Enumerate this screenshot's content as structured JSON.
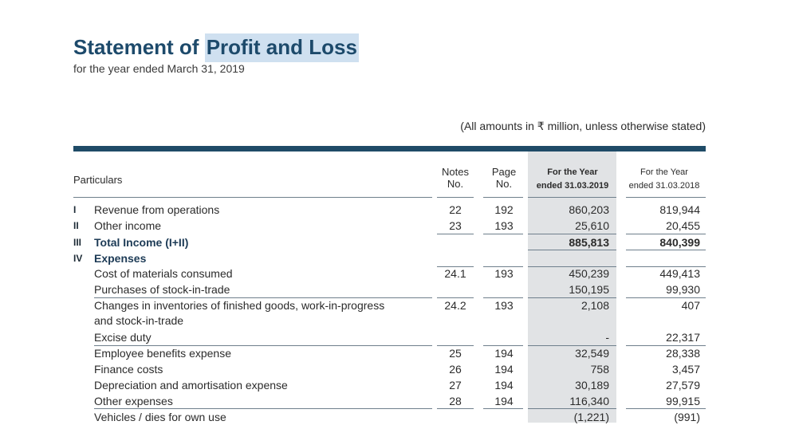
{
  "title_plain": "Statement of ",
  "title_highlight": "Profit and Loss",
  "subtitle": "for the year ended March 31, 2019",
  "amounts_note": "(All amounts in ₹ million, unless otherwise stated)",
  "header": {
    "particulars": "Particulars",
    "notes_1": "Notes",
    "notes_2": "No.",
    "page_1": "Page",
    "page_2": "No.",
    "fy19_1": "For the Year",
    "fy19_2": "ended 31.03.2019",
    "fy18_1": "For the Year",
    "fy18_2": "ended 31.03.2018"
  },
  "rows": [
    {
      "roman": "I",
      "label": "Revenue from operations",
      "note": "22",
      "page": "192",
      "fy19": "860,203",
      "fy18": "819,944"
    },
    {
      "roman": "II",
      "label": "Other income",
      "note": "23",
      "page": "193",
      "fy19": "25,610",
      "fy18": "20,455"
    },
    {
      "roman": "III",
      "label": "Total Income (I+II)",
      "note": "",
      "page": "",
      "fy19": "885,813",
      "fy18": "840,399",
      "bold": true
    },
    {
      "roman": "IV",
      "label": "Expenses",
      "note": "",
      "page": "",
      "fy19": "",
      "fy18": "",
      "bold": true
    },
    {
      "roman": "",
      "label": "Cost of materials consumed",
      "note": "24.1",
      "page": "193",
      "fy19": "450,239",
      "fy18": "449,413"
    },
    {
      "roman": "",
      "label": "Purchases of stock-in-trade",
      "note": "",
      "page": "",
      "fy19": "150,195",
      "fy18": "99,930"
    },
    {
      "roman": "",
      "label": "Changes in inventories of finished goods, work-in-progress",
      "note": "24.2",
      "page": "193",
      "fy19": "2,108",
      "fy18": "407"
    },
    {
      "roman": "",
      "label": "and stock-in-trade",
      "note": "",
      "page": "",
      "fy19": "",
      "fy18": ""
    },
    {
      "roman": "",
      "label": "Excise duty",
      "note": "",
      "page": "",
      "fy19": "-",
      "fy18": "22,317"
    },
    {
      "roman": "",
      "label": "Employee benefits expense",
      "note": "25",
      "page": "194",
      "fy19": "32,549",
      "fy18": "28,338"
    },
    {
      "roman": "",
      "label": "Finance costs",
      "note": "26",
      "page": "194",
      "fy19": "758",
      "fy18": "3,457"
    },
    {
      "roman": "",
      "label": "Depreciation and amortisation expense",
      "note": "27",
      "page": "194",
      "fy19": "30,189",
      "fy18": "27,579"
    },
    {
      "roman": "",
      "label": "Other expenses",
      "note": "28",
      "page": "194",
      "fy19": "116,340",
      "fy18": "99,915"
    },
    {
      "roman": "",
      "label": "Vehicles / dies for own use",
      "note": "",
      "page": "",
      "fy19": "(1,221)",
      "fy18": "(991)"
    }
  ]
}
